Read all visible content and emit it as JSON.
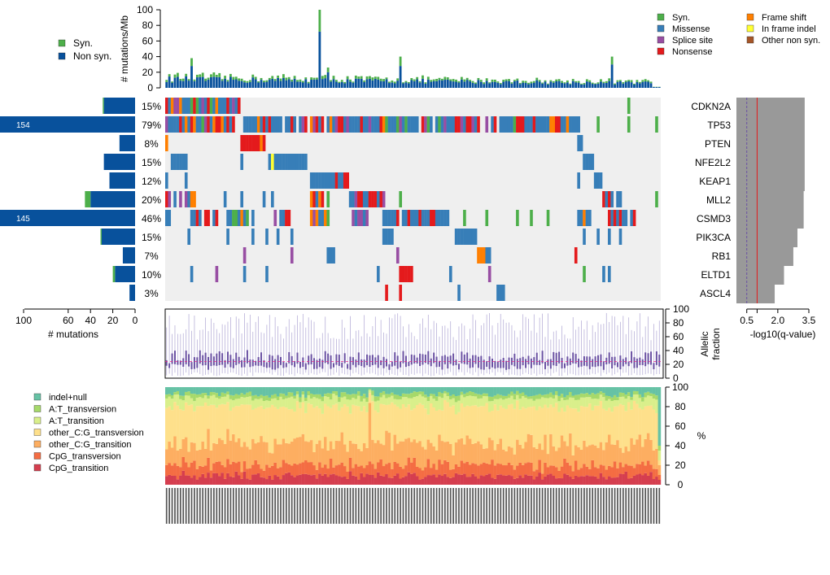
{
  "colors": {
    "syn": "#4DAF4A",
    "missense": "#377EB8",
    "splice": "#984EA3",
    "nonsense": "#E41A1C",
    "frameshift": "#FF7F00",
    "inframe": "#FFFF33",
    "othernonsyn": "#A65628",
    "nonsyn": "#08519C",
    "bg": "#efefef",
    "qbar": "#999999",
    "mut": [
      "#66C2A5",
      "#A6D96A",
      "#D9EF8B",
      "#FEE08B",
      "#FDAE61",
      "#F46D43",
      "#D53E4F"
    ]
  },
  "top_legend": {
    "syn": "Syn.",
    "nonsyn": "Non syn."
  },
  "mut_legend": [
    {
      "label": "Syn.",
      "key": "syn"
    },
    {
      "label": "Missense",
      "key": "missense"
    },
    {
      "label": "Splice site",
      "key": "splice"
    },
    {
      "label": "Nonsense",
      "key": "nonsense"
    },
    {
      "label": "Frame shift",
      "key": "frameshift"
    },
    {
      "label": "In frame indel",
      "key": "inframe"
    },
    {
      "label": "Other non syn.",
      "key": "othernonsyn"
    }
  ],
  "chart_data": {
    "type": "oncoprint",
    "n_samples": 178,
    "burden": {
      "ylabel": "# mutations/Mb",
      "yticks": [
        0,
        20,
        40,
        60,
        80,
        100
      ],
      "ylim": [
        0,
        100
      ],
      "peaks": [
        {
          "i": 55,
          "nonsyn": 72,
          "syn": 28
        },
        {
          "i": 84,
          "nonsyn": 28,
          "syn": 12
        },
        {
          "i": 160,
          "nonsyn": 30,
          "syn": 10
        },
        {
          "i": 9,
          "nonsyn": 28,
          "syn": 10
        },
        {
          "i": 58,
          "nonsyn": 20,
          "syn": 6
        }
      ]
    },
    "genes": [
      {
        "name": "CDKN2A",
        "pct": "15%",
        "nonsyn": 28,
        "syn": 1
      },
      {
        "name": "TP53",
        "pct": "79%",
        "nonsyn": 154,
        "syn": 8,
        "label": "154"
      },
      {
        "name": "PTEN",
        "pct": "8%",
        "nonsyn": 14,
        "syn": 0
      },
      {
        "name": "NFE2L2",
        "pct": "15%",
        "nonsyn": 28,
        "syn": 0
      },
      {
        "name": "KEAP1",
        "pct": "12%",
        "nonsyn": 23,
        "syn": 0
      },
      {
        "name": "MLL2",
        "pct": "20%",
        "nonsyn": 40,
        "syn": 5
      },
      {
        "name": "CSMD3",
        "pct": "46%",
        "nonsyn": 145,
        "syn": 10,
        "label": "145"
      },
      {
        "name": "PIK3CA",
        "pct": "15%",
        "nonsyn": 30,
        "syn": 1
      },
      {
        "name": "RB1",
        "pct": "7%",
        "nonsyn": 11,
        "syn": 0
      },
      {
        "name": "ELTD1",
        "pct": "10%",
        "nonsyn": 18,
        "syn": 2
      },
      {
        "name": "ASCL4",
        "pct": "3%",
        "nonsyn": 5,
        "syn": 0
      }
    ],
    "gene_xaxis": {
      "ticks": [
        100,
        60,
        40,
        20,
        0
      ],
      "label": "# mutations"
    },
    "qvalue": {
      "values": [
        3.3,
        3.3,
        3.3,
        3.3,
        3.3,
        3.25,
        3.25,
        2.95,
        2.75,
        2.3,
        1.85
      ],
      "ticks": [
        0.5,
        1.0,
        2.0,
        3.5
      ],
      "tick_labels": [
        "0.5",
        "",
        "2.0",
        "3.5"
      ],
      "xlabel": "-log10(q-value)",
      "thresholds": [
        0.5,
        1.0
      ]
    },
    "allelic": {
      "yticks": [
        0,
        20,
        40,
        60,
        80,
        100
      ],
      "ylabel1": "Allelic",
      "ylabel2": "fraction",
      "median_line": 24
    },
    "spectrum": {
      "categories": [
        "indel+null",
        "A:T_transversion",
        "A:T_transition",
        "other_C:G_transversion",
        "other_C:G_transition",
        "CpG_transversion",
        "CpG_transition"
      ],
      "mean_pct": [
        7,
        4,
        9,
        38,
        22,
        11,
        9
      ],
      "yticks": [
        0,
        20,
        40,
        60,
        80,
        100
      ],
      "ylabel": "%"
    }
  }
}
